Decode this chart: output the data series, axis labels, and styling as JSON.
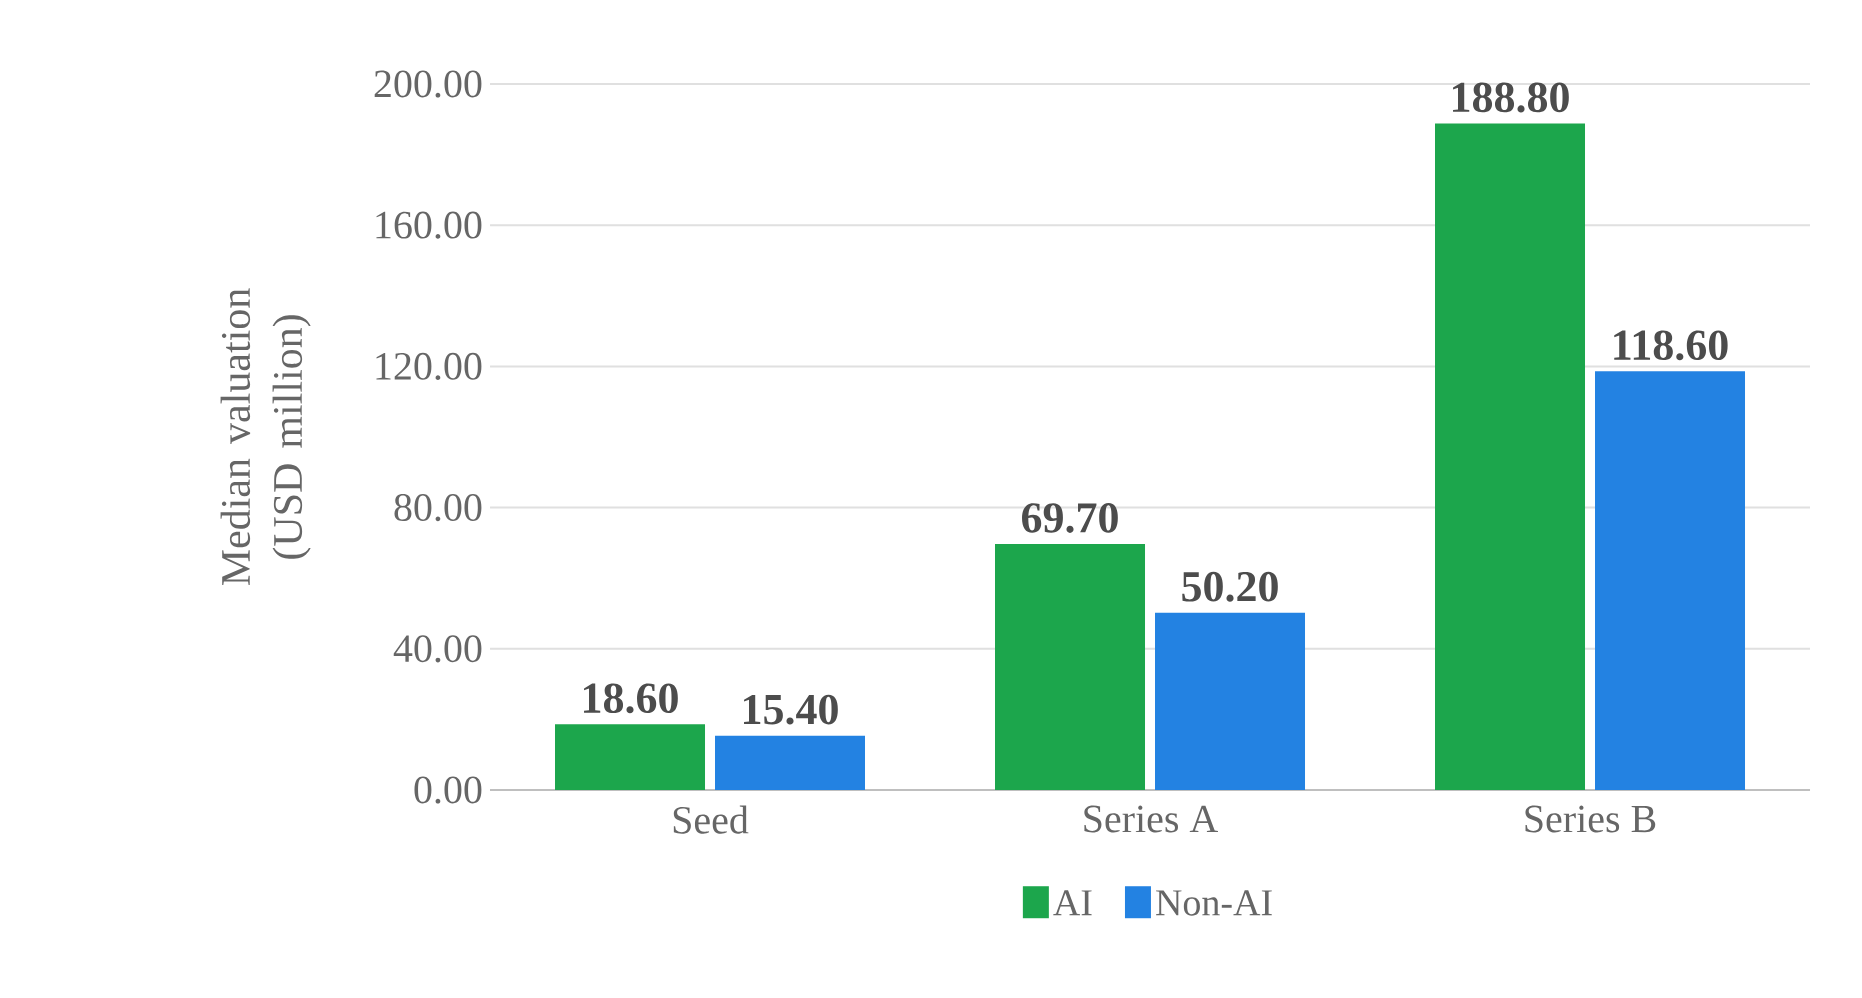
{
  "chart_data": {
    "type": "bar",
    "ylabel": "Median valuation (USD million)",
    "categories": [
      "Seed",
      "Series A",
      "Series B"
    ],
    "series": [
      {
        "name": "AI",
        "color": "#1ca64c",
        "values": [
          18.6,
          69.7,
          188.8
        ],
        "value_labels": [
          "18.60",
          "69.70",
          "188.80"
        ]
      },
      {
        "name": "Non-AI",
        "color": "#2382e2",
        "values": [
          15.4,
          50.2,
          118.6
        ],
        "value_labels": [
          "15.40",
          "50.20",
          "118.60"
        ]
      }
    ],
    "ylim": [
      0,
      200
    ],
    "yticks": [
      {
        "value": 0,
        "label": "0.00"
      },
      {
        "value": 40,
        "label": "40.00"
      },
      {
        "value": 80,
        "label": "80.00"
      },
      {
        "value": 120,
        "label": "120.00"
      },
      {
        "value": 160,
        "label": "160.00"
      },
      {
        "value": 200,
        "label": "200.00"
      }
    ],
    "grid": "y",
    "legend": "bottom"
  }
}
